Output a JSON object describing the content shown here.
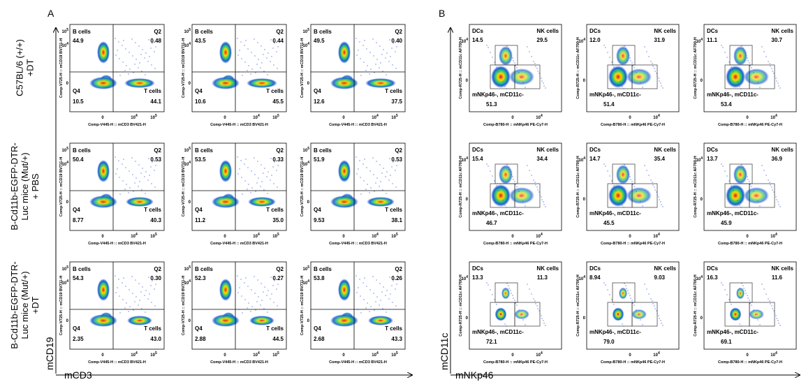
{
  "panel_a": {
    "label": "A",
    "x_title": "mCD3",
    "y_title": "mCD19",
    "row_labels": [
      [
        "C57BL/6 (+/+)",
        "+DT"
      ],
      [
        "B-Cd11b-EGFP-DTR-",
        "Luc mice (Mut/+)",
        "+ PBS"
      ],
      [
        "B-Cd11b-EGFP-DTR-",
        "Luc mice (Mut/+)",
        "+DT"
      ]
    ],
    "x_axis": "Comp-V445-H :: mCD3 BV421-H",
    "y_axis": "Comp-V725-H :: mCD19 BV711-H",
    "x_ticks": [
      {
        "base": "0"
      },
      {
        "base": "10",
        "exp": "4"
      },
      {
        "base": "10",
        "exp": "5"
      }
    ],
    "y_ticks": [
      {
        "base": "10",
        "exp": "5"
      },
      {
        "base": "10",
        "exp": "4"
      },
      {
        "base": "0"
      }
    ],
    "gate_names": [
      "B cells",
      "Q2",
      "Q4",
      "T cells"
    ],
    "plots": [
      [
        "44.9",
        "0.48",
        "10.5",
        "44.1"
      ],
      [
        "43.5",
        "0.44",
        "10.6",
        "45.5"
      ],
      [
        "49.5",
        "0.40",
        "12.6",
        "37.5"
      ],
      [
        "50.4",
        "0.53",
        "8.77",
        "40.3"
      ],
      [
        "53.5",
        "0.33",
        "11.2",
        "35.0"
      ],
      [
        "51.9",
        "0.53",
        "9.53",
        "38.1"
      ],
      [
        "54.3",
        "0.30",
        "2.35",
        "43.0"
      ],
      [
        "52.3",
        "0.27",
        "2.88",
        "44.5"
      ],
      [
        "53.8",
        "0.26",
        "2.68",
        "43.3"
      ]
    ]
  },
  "panel_b": {
    "label": "B",
    "x_title": "mNKp46",
    "y_title": "mCD11c",
    "x_axis": "Comp-B780-H :: mNKp46 PE-Cy7-H",
    "y_axis": "Comp-R725-H :: mCD11c AF700-H",
    "x_ticks": [
      {
        "base": "0"
      },
      {
        "base": "10",
        "exp": "4"
      }
    ],
    "y_ticks": [
      {
        "base": "10",
        "exp": "4"
      },
      {
        "base": "0"
      }
    ],
    "gate_names": [
      "DCs",
      "NK cells",
      "mNKp46-, mCD11c-"
    ],
    "plots": [
      [
        "14.5",
        "29.5",
        "51.3"
      ],
      [
        "12.0",
        "31.9",
        "51.4"
      ],
      [
        "11.1",
        "30.7",
        "53.4"
      ],
      [
        "15.4",
        "34.4",
        "46.7"
      ],
      [
        "14.7",
        "35.4",
        "45.5"
      ],
      [
        "13.7",
        "36.9",
        "45.9"
      ],
      [
        "13.3",
        "11.3",
        "72.1"
      ],
      [
        "8.94",
        "9.03",
        "79.0"
      ],
      [
        "16.3",
        "11.6",
        "69.1"
      ]
    ]
  }
}
